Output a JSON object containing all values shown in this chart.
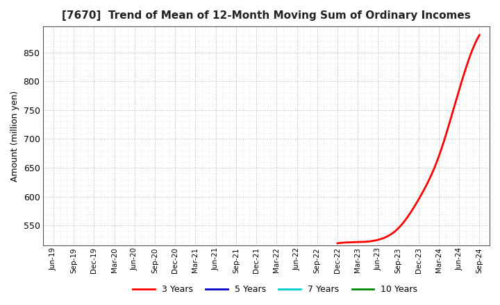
{
  "title": "[7670]  Trend of Mean of 12-Month Moving Sum of Ordinary Incomes",
  "ylabel": "Amount (million yen)",
  "ylim": [
    515,
    895
  ],
  "yticks": [
    550,
    600,
    650,
    700,
    750,
    800,
    850
  ],
  "background_color": "#ffffff",
  "plot_bg_color": "#ffffff",
  "grid_color": "#999999",
  "line_3y_color": "#ff0000",
  "line_5y_color": "#0000cc",
  "line_7y_color": "#00cccc",
  "line_10y_color": "#008800",
  "legend_labels": [
    "3 Years",
    "5 Years",
    "7 Years",
    "10 Years"
  ],
  "x_labels": [
    "Jun-19",
    "Sep-19",
    "Dec-19",
    "Mar-20",
    "Jun-20",
    "Sep-20",
    "Dec-20",
    "Mar-21",
    "Jun-21",
    "Sep-21",
    "Dec-21",
    "Mar-22",
    "Jun-22",
    "Sep-22",
    "Dec-22",
    "Mar-23",
    "Jun-23",
    "Sep-23",
    "Dec-23",
    "Mar-24",
    "Jun-24",
    "Sep-24"
  ],
  "data_3y_x": [
    14,
    15,
    16,
    17,
    18,
    19,
    20,
    21
  ],
  "data_3y_y": [
    519,
    521,
    525,
    545,
    595,
    670,
    785,
    880
  ]
}
